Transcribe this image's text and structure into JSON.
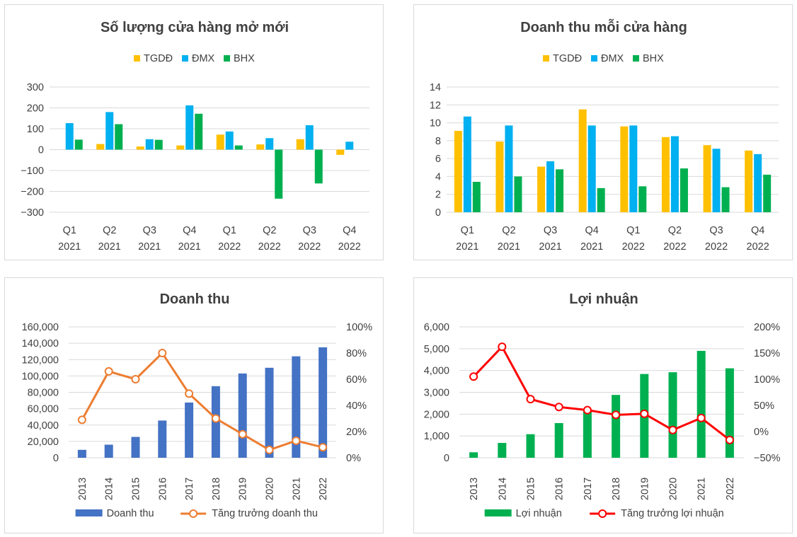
{
  "chart_data": [
    {
      "id": "c1",
      "type": "bar",
      "title": "Số lượng cửa hàng mở mới",
      "categories": [
        [
          "Q1",
          "2021"
        ],
        [
          "Q2",
          "2021"
        ],
        [
          "Q3",
          "2021"
        ],
        [
          "Q4",
          "2021"
        ],
        [
          "Q1",
          "2022"
        ],
        [
          "Q2",
          "2022"
        ],
        [
          "Q3",
          "2022"
        ],
        [
          "Q4",
          "2022"
        ]
      ],
      "series": [
        {
          "name": "TGDĐ",
          "color": "#FFC000",
          "values": [
            0,
            27,
            15,
            20,
            72,
            25,
            50,
            -25
          ]
        },
        {
          "name": "ĐMX",
          "color": "#00B0F0",
          "values": [
            127,
            180,
            50,
            212,
            87,
            55,
            117,
            38
          ]
        },
        {
          "name": "BHX",
          "color": "#00B050",
          "values": [
            48,
            122,
            47,
            172,
            20,
            -235,
            -162,
            0
          ]
        }
      ],
      "ylim": [
        -300,
        300
      ],
      "yticks": [
        -300,
        -200,
        -100,
        0,
        100,
        200,
        300
      ],
      "ytick_labels": [
        "−300",
        "−200",
        "−100",
        "0",
        "100",
        "200",
        "300"
      ],
      "grid": true,
      "legend": "top"
    },
    {
      "id": "c2",
      "type": "bar",
      "title": "Doanh thu mỗi cửa hàng",
      "categories": [
        [
          "Q1",
          "2021"
        ],
        [
          "Q2",
          "2021"
        ],
        [
          "Q3",
          "2021"
        ],
        [
          "Q4",
          "2021"
        ],
        [
          "Q1",
          "2022"
        ],
        [
          "Q2",
          "2022"
        ],
        [
          "Q3",
          "2022"
        ],
        [
          "Q4",
          "2022"
        ]
      ],
      "series": [
        {
          "name": "TGDĐ",
          "color": "#FFC000",
          "values": [
            9.1,
            7.9,
            5.1,
            11.5,
            9.6,
            8.4,
            7.5,
            6.9
          ]
        },
        {
          "name": "ĐMX",
          "color": "#00B0F0",
          "values": [
            10.7,
            9.7,
            5.7,
            9.7,
            9.7,
            8.5,
            7.1,
            6.5
          ]
        },
        {
          "name": "BHX",
          "color": "#00B050",
          "values": [
            3.4,
            4.0,
            4.8,
            2.7,
            2.9,
            4.9,
            2.8,
            4.2
          ]
        }
      ],
      "ylim": [
        0,
        14
      ],
      "yticks": [
        0,
        2,
        4,
        6,
        8,
        10,
        12,
        14
      ],
      "ytick_labels": [
        "0",
        "2",
        "4",
        "6",
        "8",
        "10",
        "12",
        "14"
      ],
      "grid": true,
      "legend": "top"
    },
    {
      "id": "c3",
      "type": "bar+line",
      "title": "Doanh thu",
      "categories": [
        "2013",
        "2014",
        "2015",
        "2016",
        "2017",
        "2018",
        "2019",
        "2020",
        "2021",
        "2022"
      ],
      "bar_series": {
        "name": "Doanh thu",
        "color": "#4472C4",
        "values": [
          9700,
          16000,
          25500,
          45500,
          67500,
          87500,
          103000,
          110000,
          124000,
          135000
        ]
      },
      "line_series": {
        "name": "Tăng trưởng doanh thu",
        "color": "#ED7D31",
        "values": [
          29,
          66,
          60,
          80,
          49,
          30,
          18,
          6,
          13,
          8
        ]
      },
      "ylim": [
        0,
        160000
      ],
      "yticks": [
        0,
        20000,
        40000,
        60000,
        80000,
        100000,
        120000,
        140000,
        160000
      ],
      "ytick_labels": [
        "0",
        "20,000",
        "40,000",
        "60,000",
        "80,000",
        "100,000",
        "120,000",
        "140,000",
        "160,000"
      ],
      "y2lim": [
        0,
        100
      ],
      "y2ticks": [
        0,
        20,
        40,
        60,
        80,
        100
      ],
      "y2tick_labels": [
        "0%",
        "20%",
        "40%",
        "60%",
        "80%",
        "100%"
      ],
      "grid": true,
      "legend": "bottom"
    },
    {
      "id": "c4",
      "type": "bar+line",
      "title": "Lợi nhuận",
      "categories": [
        "2013",
        "2014",
        "2015",
        "2016",
        "2017",
        "2018",
        "2019",
        "2020",
        "2021",
        "2022"
      ],
      "bar_series": {
        "name": "Lợi nhuận",
        "color": "#00B050",
        "values": [
          250,
          680,
          1080,
          1590,
          2200,
          2880,
          3840,
          3920,
          4900,
          4100
        ]
      },
      "line_series": {
        "name": "Tăng trưởng lợi nhuận",
        "color": "#FF0000",
        "values": [
          105,
          162,
          62,
          47,
          41,
          32,
          34,
          3,
          26,
          -16
        ]
      },
      "ylim": [
        0,
        6000
      ],
      "yticks": [
        0,
        1000,
        2000,
        3000,
        4000,
        5000,
        6000
      ],
      "ytick_labels": [
        "0",
        "1,000",
        "2,000",
        "3,000",
        "4,000",
        "5,000",
        "6,000"
      ],
      "y2lim": [
        -50,
        200
      ],
      "y2ticks": [
        -50,
        0,
        50,
        100,
        150,
        200
      ],
      "y2tick_labels": [
        "−50%",
        "0%",
        "50%",
        "100%",
        "150%",
        "200%"
      ],
      "grid": true,
      "legend": "bottom"
    }
  ]
}
